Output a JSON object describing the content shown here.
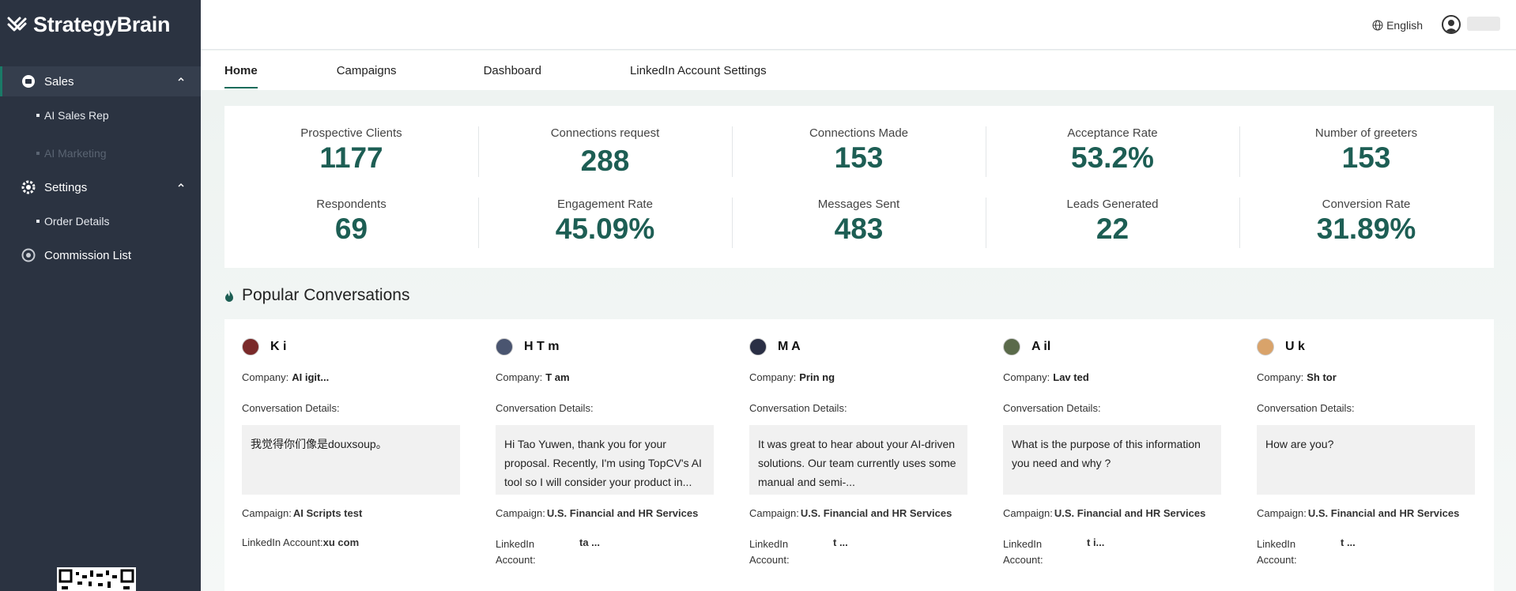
{
  "app": {
    "brand": "StrategyBrain"
  },
  "sidebar": {
    "groups": [
      {
        "label": "Sales",
        "icon": "sales-icon",
        "items": [
          {
            "label": "AI Sales Rep",
            "disabled": false
          },
          {
            "label": "AI Marketing",
            "disabled": true
          }
        ]
      },
      {
        "label": "Settings",
        "icon": "gear-icon",
        "items": [
          {
            "label": "Order Details",
            "disabled": false
          }
        ]
      },
      {
        "label": "Commission List",
        "icon": "commission-icon",
        "items": []
      }
    ]
  },
  "topbar": {
    "language": "English"
  },
  "tabs": [
    {
      "label": "Home",
      "active": true
    },
    {
      "label": "Campaigns",
      "active": false
    },
    {
      "label": "Dashboard",
      "active": false
    },
    {
      "label": "LinkedIn Account Settings",
      "active": false
    }
  ],
  "stats": [
    {
      "label": "Prospective Clients",
      "value": "1177"
    },
    {
      "label": "Connections request",
      "value": "288"
    },
    {
      "label": "Connections Made",
      "value": "153"
    },
    {
      "label": "Acceptance Rate",
      "value": "53.2%"
    },
    {
      "label": "Number of greeters",
      "value": "153"
    },
    {
      "label": "Respondents",
      "value": "69"
    },
    {
      "label": "Engagement Rate",
      "value": "45.09%"
    },
    {
      "label": "Messages Sent",
      "value": "483"
    },
    {
      "label": "Leads Generated",
      "value": "22"
    },
    {
      "label": "Conversion Rate",
      "value": "31.89%"
    }
  ],
  "popular": {
    "title": "Popular Conversations",
    "company_label": "Company:",
    "details_label": "Conversation Details:",
    "campaign_label": "Campaign:",
    "linkedin_label": "LinkedIn Account:",
    "linkedin_label_wrap": "LinkedIn\nAccount:",
    "items": [
      {
        "name": "K   i",
        "company": "AI                              igit...",
        "message": "我觉得你们像是douxsoup。",
        "campaign": "AI Scripts test",
        "linkedin": "xu                          com",
        "avatar_color": "#7a2a2a"
      },
      {
        "name": "H   T   m",
        "company": "T        am",
        "message": "Hi Tao Yuwen, thank you for your proposal. Recently, I'm using TopCV's AI tool so I will consider your product in...",
        "campaign": "U.S. Financial and HR Services",
        "linkedin": "ta                   ...",
        "avatar_color": "#4a5570"
      },
      {
        "name": "M              A",
        "company": "Prin                ng",
        "message": "It was great to hear about your AI-driven solutions. Our team currently uses some manual and semi-...",
        "campaign": "U.S. Financial and HR Services",
        "linkedin": "t                    ...",
        "avatar_color": "#2a2f45"
      },
      {
        "name": "A         il",
        "company": "Lav               ted",
        "message": "What is the purpose of this information you need and why ?",
        "campaign": "U.S. Financial and HR Services",
        "linkedin": "t                 i...",
        "avatar_color": "#5a6a4a"
      },
      {
        "name": "U          k",
        "company": "Sh          tor",
        "message": "How are you?",
        "campaign": "U.S. Financial and HR Services",
        "linkedin": "t                 ...",
        "avatar_color": "#d9a36a"
      }
    ]
  }
}
